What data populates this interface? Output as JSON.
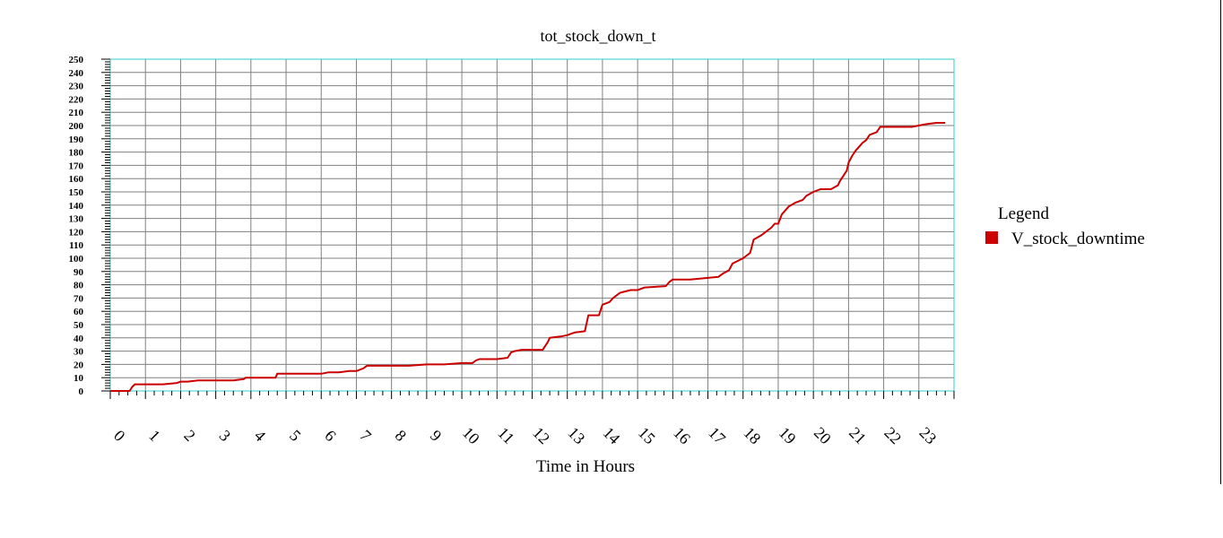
{
  "chart_data": {
    "type": "line",
    "title": "tot_stock_down_t",
    "xlabel": "Time in Hours",
    "ylabel": "",
    "xlim": [
      0,
      24
    ],
    "ylim": [
      0,
      250
    ],
    "x_ticks": [
      "0",
      "1",
      "2",
      "3",
      "4",
      "5",
      "6",
      "7",
      "8",
      "9",
      "10",
      "11",
      "12",
      "13",
      "14",
      "15",
      "16",
      "17",
      "18",
      "19",
      "20",
      "21",
      "22",
      "23"
    ],
    "y_ticks": [
      "0",
      "10",
      "20",
      "30",
      "40",
      "50",
      "60",
      "70",
      "80",
      "90",
      "100",
      "110",
      "120",
      "130",
      "140",
      "150",
      "160",
      "170",
      "180",
      "190",
      "200",
      "210",
      "220",
      "230",
      "240",
      "250"
    ],
    "grid": true,
    "legend_title": "Legend",
    "legend_placement": "right",
    "series": [
      {
        "name": "V_stock_downtime",
        "color": "#cc0000",
        "x": [
          0,
          0.55,
          0.62,
          0.7,
          1.0,
          1.5,
          1.9,
          2.0,
          2.2,
          2.5,
          3.0,
          3.5,
          3.8,
          3.85,
          4.2,
          4.7,
          4.75,
          5.2,
          5.6,
          6.0,
          6.2,
          6.5,
          6.8,
          7.0,
          7.2,
          7.3,
          7.5,
          8.0,
          8.5,
          9.0,
          9.5,
          10.0,
          10.3,
          10.4,
          10.5,
          11.0,
          11.3,
          11.4,
          11.5,
          11.7,
          12.0,
          12.3,
          12.35,
          12.45,
          12.5,
          12.8,
          13.0,
          13.2,
          13.5,
          13.6,
          13.9,
          14.0,
          14.2,
          14.3,
          14.5,
          14.8,
          15.0,
          15.2,
          15.8,
          15.9,
          16.0,
          16.5,
          16.9,
          17.3,
          17.4,
          17.6,
          17.7,
          18.0,
          18.1,
          18.2,
          18.3,
          18.5,
          18.6,
          18.8,
          18.9,
          19.0,
          19.1,
          19.2,
          19.3,
          19.5,
          19.7,
          19.8,
          20.0,
          20.2,
          20.5,
          20.7,
          20.75,
          20.85,
          20.95,
          21.0,
          21.1,
          21.2,
          21.4,
          21.5,
          21.6,
          21.8,
          21.9,
          22.2,
          22.8,
          23.0,
          23.2,
          23.5,
          23.75
        ],
        "y": [
          0,
          0,
          3,
          5,
          5,
          5,
          6,
          7,
          7,
          8,
          8,
          8,
          9,
          10,
          10,
          10,
          13,
          13,
          13,
          13,
          14,
          14,
          15,
          15,
          17,
          19,
          19,
          19,
          19,
          20,
          20,
          21,
          21,
          23,
          24,
          24,
          25,
          29,
          30,
          31,
          31,
          31,
          33,
          37,
          40,
          41,
          42,
          44,
          45,
          57,
          57,
          65,
          67,
          70,
          74,
          76,
          76,
          78,
          79,
          82,
          84,
          84,
          85,
          86,
          88,
          91,
          96,
          100,
          102,
          104,
          114,
          117,
          119,
          123,
          126,
          126,
          133,
          136,
          139,
          142,
          144,
          147,
          150,
          152,
          152,
          155,
          158,
          162,
          166,
          172,
          177,
          181,
          187,
          189,
          193,
          195,
          199,
          199,
          199,
          200,
          201,
          202,
          202
        ]
      }
    ]
  }
}
